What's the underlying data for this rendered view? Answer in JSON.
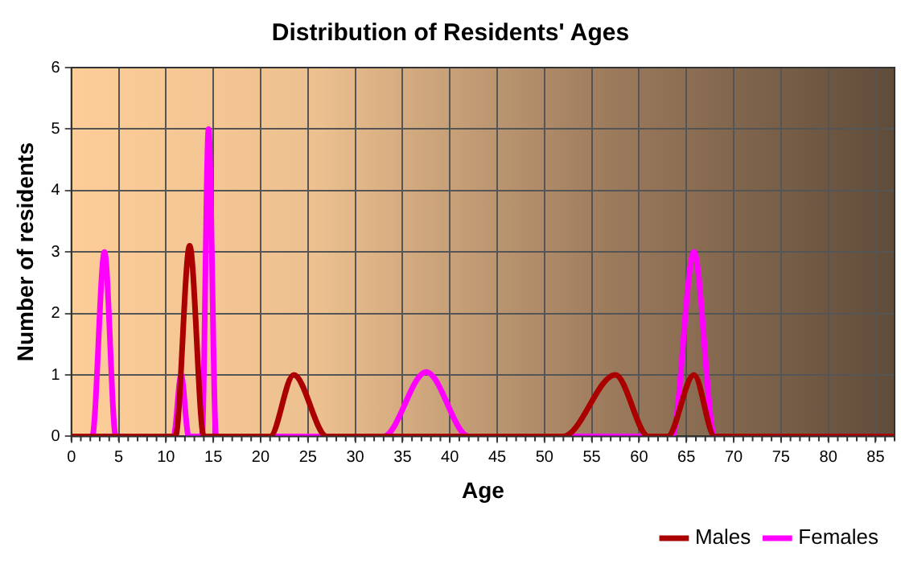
{
  "chart_data": {
    "type": "line",
    "title": "Distribution of Residents' Ages",
    "xlabel": "Age",
    "ylabel": "Number of residents",
    "xlim": [
      0,
      87
    ],
    "xticks": [
      0,
      5,
      10,
      15,
      20,
      25,
      30,
      35,
      40,
      45,
      50,
      55,
      60,
      65,
      70,
      75,
      80,
      85
    ],
    "ylim": [
      0,
      6
    ],
    "yticks": [
      0,
      1,
      2,
      3,
      4,
      5,
      6
    ],
    "grid": true,
    "legend": "bottom right",
    "marker": "none",
    "line_style": "solid",
    "series": [
      {
        "name": "Males",
        "color": "#aa0000",
        "x": [
          0,
          11,
          12.5,
          14,
          21,
          23.5,
          27,
          52,
          57.5,
          61,
          63,
          65.8,
          68,
          87
        ],
        "values": [
          0,
          0,
          3.1,
          0,
          0,
          1,
          0,
          0,
          1,
          0,
          0,
          1,
          0,
          0
        ]
      },
      {
        "name": "Females",
        "color": "#ff00ff",
        "x": [
          0,
          2.2,
          3.5,
          4.7,
          10.8,
          11.6,
          12.4,
          13.8,
          14.5,
          15.3,
          33,
          37.5,
          42,
          63.5,
          65.8,
          68,
          87
        ],
        "values": [
          0,
          0,
          3,
          0,
          0,
          1,
          0,
          0,
          5,
          0,
          0,
          1.05,
          0,
          0,
          3,
          0,
          0
        ]
      }
    ]
  }
}
